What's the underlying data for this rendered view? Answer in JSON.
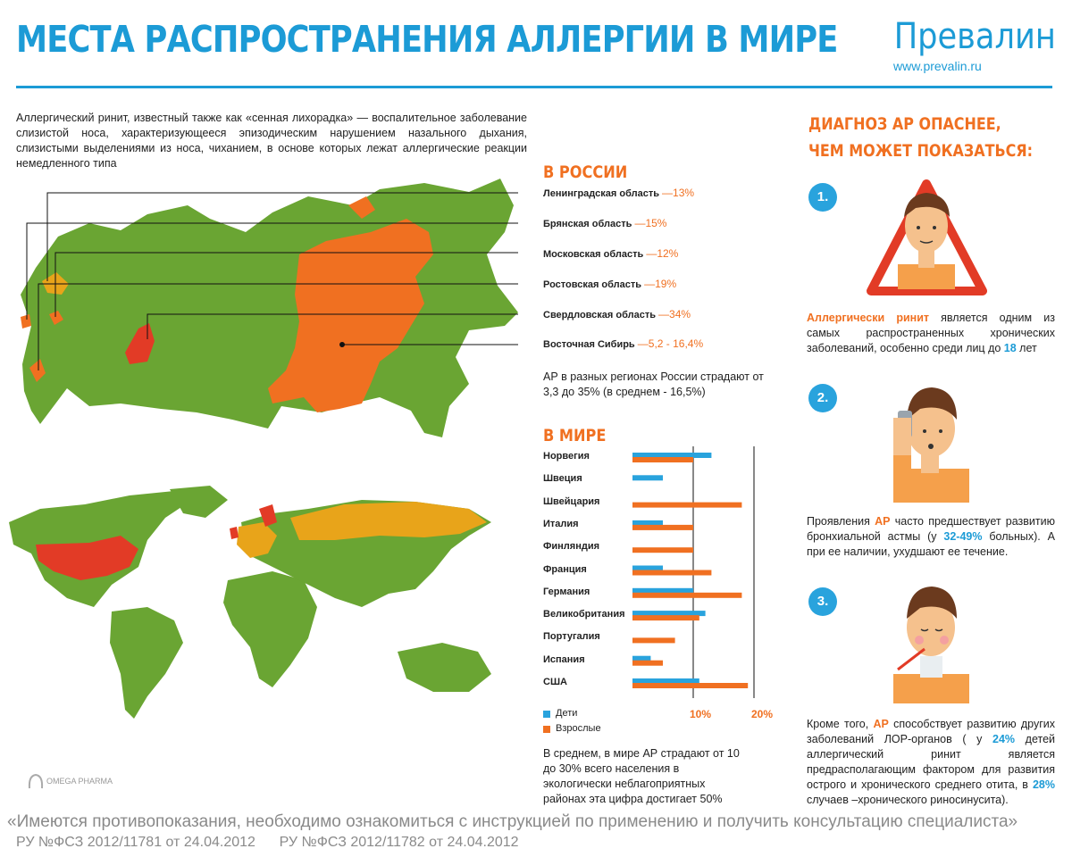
{
  "header": {
    "title": "МЕСТА РАСПРОСТРАНЕНИЯ АЛЛЕРГИИ В МИРЕ",
    "brand": "Превалин",
    "site": "www.prevalin.ru"
  },
  "intro": "Аллергический ринит, известный также как «сенная лихорадка» — воспалительное заболевание слизистой носа, характеризующееся эпизодическим нарушением назального дыхания, слизистыми выделениями из носа, чиханием, в основе которых лежат аллергические реакции немедленного типа",
  "russia": {
    "heading": "В РОССИИ",
    "regions": [
      {
        "name": "Ленинградская область",
        "value": "—13%"
      },
      {
        "name": "Брянская область",
        "value": "—15%"
      },
      {
        "name": "Московская область",
        "value": "—12%"
      },
      {
        "name": "Ростовская область",
        "value": "—19%"
      },
      {
        "name": "Свердловская область",
        "value": "—34%"
      },
      {
        "name": "Восточная Сибирь",
        "value": "—5,2 - 16,4%"
      }
    ],
    "note": "АР в разных регионах России страдают от 3,3 до 35% (в среднем - 16,5%)"
  },
  "world": {
    "heading": "В МИРЕ",
    "legend_children": "Дети",
    "legend_adults": "Взрослые",
    "tick_10": "10%",
    "tick_20": "20%",
    "note": "В среднем, в мире АР страдают от 10 до 30% всего населения в экологически неблагоприятных районах эта цифра достигает 50%"
  },
  "chart_data": {
    "type": "bar",
    "orientation": "horizontal",
    "categories": [
      "Норвегия",
      "Швеция",
      "Швейцария",
      "Италия",
      "Финляндия",
      "Франция",
      "Германия",
      "Великобритания",
      "Португалия",
      "Испания",
      "США"
    ],
    "series": [
      {
        "name": "Дети",
        "color": "#29a3dd",
        "values": [
          13,
          5,
          null,
          5,
          null,
          5,
          10,
          12,
          null,
          3,
          11
        ]
      },
      {
        "name": "Взрослые",
        "color": "#f07021",
        "values": [
          10,
          null,
          18,
          10,
          10,
          13,
          18,
          11,
          7,
          5,
          19
        ]
      }
    ],
    "xlim": [
      0,
      20
    ],
    "ticks": [
      "10%",
      "20%"
    ]
  },
  "diagnosis": {
    "heading_line1": "ДИАГНОЗ АР ОПАСНЕЕ,",
    "heading_line2": "ЧЕМ МОЖЕТ ПОКАЗАТЬСЯ:",
    "n1": "1.",
    "n2": "2.",
    "n3": "3.",
    "p1_a": "Аллергически ринит",
    "p1_b": " является одним из самых распространенных хронических заболеваний, особенно среди лиц до ",
    "p1_c": "18",
    "p1_d": " лет",
    "p2_a": "Проявления ",
    "p2_b": "АР",
    "p2_c": " часто предшествует развитию бронхиальной астмы (у ",
    "p2_d": "32-49%",
    "p2_e": " больных). А при ее наличии, ухудшают ее течение.",
    "p3_a": "Кроме того, ",
    "p3_b": "АР",
    "p3_c": " способствует развитию других заболеваний ЛОР-органов ( у ",
    "p3_d": "24%",
    "p3_e": " детей аллергический ринит является предрасполагающим фактором для развития острого и хронического среднего отита, в ",
    "p3_f": "28%",
    "p3_g": " случаев –хронического риносинусита)."
  },
  "footer": {
    "disclaimer": "«Имеются противопоказания, необходимо ознакомиться с инструкцией по применению и получить консультацию специалиста»",
    "reg1": "РУ №ФСЗ 2012/11781 от 24.04.2012",
    "reg2": "РУ №ФСЗ 2012/11782 от 24.04.2012"
  },
  "logo_text": "OMEGA PHARMA",
  "colors": {
    "blue": "#1c9bd6",
    "orange": "#f07021",
    "green": "#6aa533",
    "red": "#e23b26",
    "amber": "#e8a41a"
  }
}
